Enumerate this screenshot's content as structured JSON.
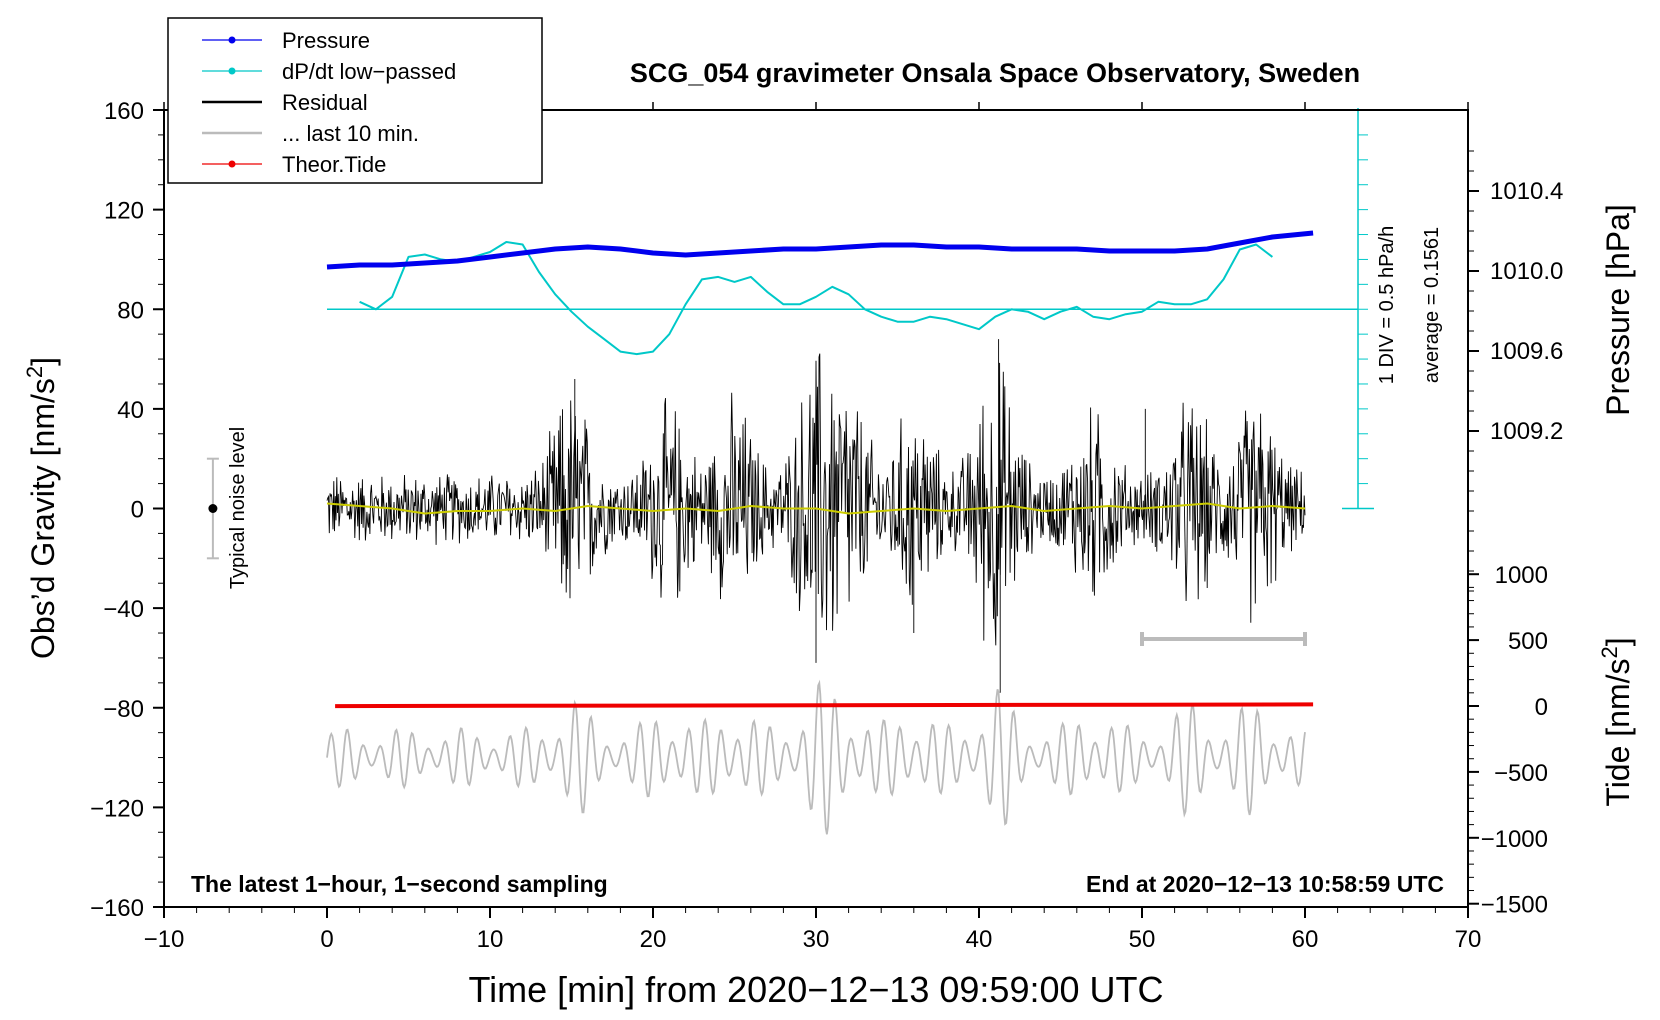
{
  "chart_data": {
    "type": "line",
    "title": "SCG_054 gravimeter Onsala Space Observatory, Sweden",
    "xlabel": "Time [min] from 2020−12−13 09:59:00 UTC",
    "ylabel_left": "Obs’d Gravity [nm/s",
    "ylabel_left_sup": "2",
    "ylabel_left_end": "]",
    "ylabel_right_pressure": "Pressure [hPa]",
    "ylabel_right_tide": "Tide [nm/s",
    "ylabel_right_tide_sup": "2",
    "ylabel_right_tide_end": "]",
    "xlim": [
      -10,
      70
    ],
    "ylim": [
      -160,
      160
    ],
    "x_ticks": [
      "−10",
      "0",
      "10",
      "20",
      "30",
      "40",
      "50",
      "60",
      "70"
    ],
    "x_tick_values": [
      -10,
      0,
      10,
      20,
      30,
      40,
      50,
      60,
      70
    ],
    "y_ticks": [
      "160",
      "120",
      "80",
      "40",
      "0",
      "−40",
      "−80",
      "−120",
      "−160"
    ],
    "y_tick_values": [
      160,
      120,
      80,
      40,
      0,
      -40,
      -80,
      -120,
      -160
    ],
    "pressure_ticks": [
      "1010.4",
      "1010.0",
      "1009.6",
      "1009.2"
    ],
    "pressure_tick_values": [
      1010.4,
      1010.0,
      1009.6,
      1009.2
    ],
    "pressure_range": [
      1008.4,
      1010.6
    ],
    "tide_ticks": [
      "1000",
      "500",
      "0",
      "−500",
      "−1000",
      "−1500"
    ],
    "tide_tick_values": [
      1000,
      500,
      0,
      -500,
      -1000,
      -1500
    ],
    "tide_range": [
      -1500,
      1000
    ],
    "legend": [
      {
        "label": "Pressure",
        "color": "#0000ee",
        "marker": true
      },
      {
        "label": "dP/dt low−passed",
        "color": "#00c8c8",
        "marker": true
      },
      {
        "label": "Residual",
        "color": "#000000",
        "marker": false
      },
      {
        "label": "... last 10 min.",
        "color": "#bbbbbb",
        "marker": false
      },
      {
        "label": "Theor.Tide",
        "color": "#ee0000",
        "marker": true
      }
    ],
    "dpdt_scale_label": "1 DIV = 0.5 hPa/h",
    "dpdt_average_label": "average = 0.1561",
    "noise_label": "Typical noise level",
    "noise_center": 0,
    "noise_halfwidth": 20,
    "footer_left": "The latest 1−hour, 1−second sampling",
    "footer_right": "End at 2020−12−13 10:58:59 UTC",
    "series": [
      {
        "name": "Pressure",
        "unit": "hPa",
        "color": "#0000ee",
        "x": [
          0,
          2,
          4,
          6,
          8,
          10,
          12,
          14,
          16,
          18,
          20,
          22,
          24,
          26,
          28,
          30,
          32,
          34,
          36,
          38,
          40,
          42,
          44,
          46,
          48,
          50,
          52,
          54,
          56,
          58,
          60.5
        ],
        "values": [
          1010.02,
          1010.03,
          1010.03,
          1010.04,
          1010.05,
          1010.07,
          1010.09,
          1010.11,
          1010.12,
          1010.11,
          1010.09,
          1010.08,
          1010.09,
          1010.1,
          1010.11,
          1010.11,
          1010.12,
          1010.13,
          1010.13,
          1010.12,
          1010.12,
          1010.11,
          1010.11,
          1010.11,
          1010.1,
          1010.1,
          1010.1,
          1010.11,
          1010.14,
          1010.17,
          1010.19
        ]
      },
      {
        "name": "dP/dt low-passed",
        "unit": "gravity-axis units (baseline 80)",
        "color": "#00c8c8",
        "x": [
          2,
          3,
          4,
          5,
          6,
          7,
          8,
          9,
          10,
          11,
          12,
          13,
          14,
          15,
          16,
          17,
          18,
          19,
          20,
          21,
          22,
          23,
          24,
          25,
          26,
          27,
          28,
          29,
          30,
          31,
          32,
          33,
          34,
          35,
          36,
          37,
          38,
          39,
          40,
          41,
          42,
          43,
          44,
          45,
          46,
          47,
          48,
          49,
          50,
          51,
          52,
          53,
          54,
          55,
          56,
          57,
          58
        ],
        "values": [
          83,
          80,
          85,
          101,
          102,
          100,
          99,
          101,
          103,
          107,
          106,
          95,
          86,
          79,
          73,
          68,
          63,
          62,
          63,
          70,
          82,
          92,
          93,
          91,
          93,
          87,
          82,
          82,
          85,
          89,
          86,
          80,
          77,
          75,
          75,
          77,
          76,
          74,
          72,
          77,
          80,
          79,
          76,
          79,
          81,
          77,
          76,
          78,
          79,
          83,
          82,
          82,
          84,
          92,
          104,
          106,
          101
        ]
      },
      {
        "name": "Residual mean",
        "unit": "nm/s2",
        "color": "#cccc00",
        "x": [
          0,
          2,
          4,
          6,
          8,
          10,
          12,
          14,
          16,
          18,
          20,
          22,
          24,
          26,
          28,
          30,
          32,
          34,
          36,
          38,
          40,
          42,
          44,
          46,
          48,
          50,
          52,
          54,
          56,
          58,
          60
        ],
        "values": [
          2,
          1,
          0,
          -2,
          -1,
          -1,
          0,
          -1,
          1,
          0,
          -1,
          0,
          -1,
          1,
          0,
          0,
          -2,
          -1,
          0,
          -1,
          0,
          1,
          -1,
          0,
          1,
          0,
          1,
          2,
          0,
          1,
          0
        ]
      },
      {
        "name": "Theor.Tide",
        "unit": "nm/s2",
        "color": "#ee0000",
        "x": [
          0.5,
          60.5
        ],
        "values": [
          -1,
          12
        ]
      }
    ]
  }
}
